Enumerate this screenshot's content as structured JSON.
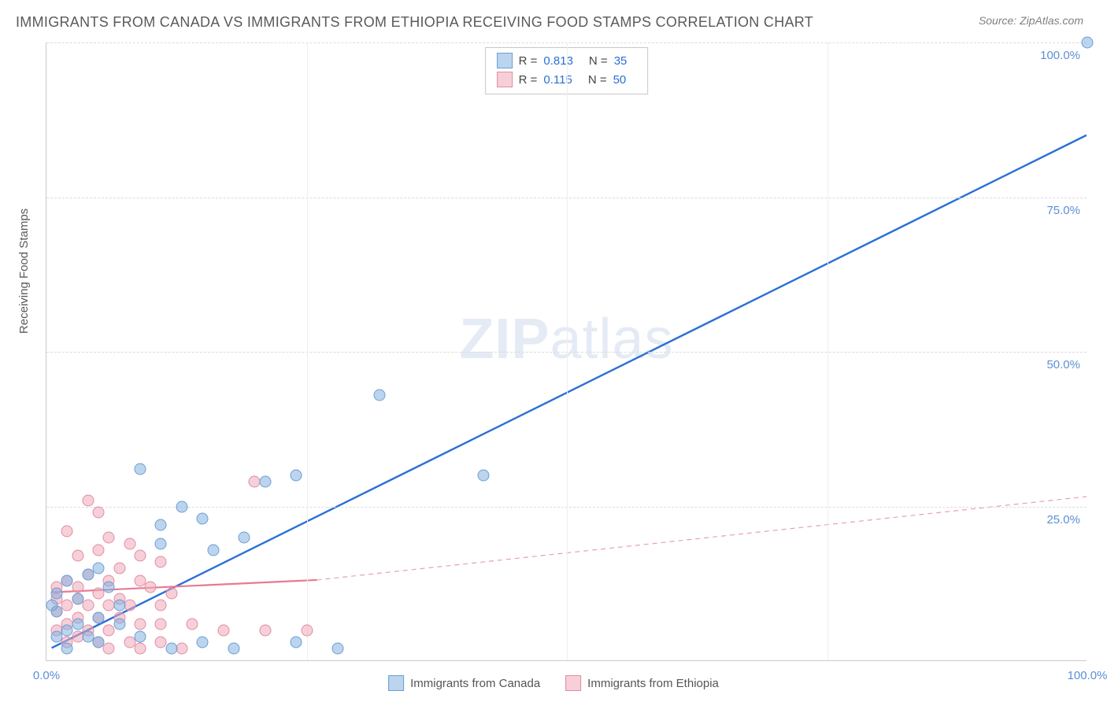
{
  "title": "IMMIGRANTS FROM CANADA VS IMMIGRANTS FROM ETHIOPIA RECEIVING FOOD STAMPS CORRELATION CHART",
  "source": "Source: ZipAtlas.com",
  "y_axis_title": "Receiving Food Stamps",
  "watermark_bold": "ZIP",
  "watermark_light": "atlas",
  "chart": {
    "type": "scatter",
    "xlim": [
      0,
      100
    ],
    "ylim": [
      0,
      100
    ],
    "tick_step": 25,
    "xtick_labels": [
      "0.0%",
      "100.0%"
    ],
    "ytick_labels": [
      "25.0%",
      "50.0%",
      "75.0%",
      "100.0%"
    ],
    "grid_color": "#dcdcdc",
    "background_color": "#ffffff",
    "axis_color": "#c9c9c9",
    "label_color": "#5b8fd6",
    "label_fontsize": 15
  },
  "series": {
    "a": {
      "label": "Immigrants from Canada",
      "color_fill": "rgba(133,177,224,0.55)",
      "color_stroke": "#6a9fd4",
      "R": "0.813",
      "N": "35",
      "trend": {
        "x1": 0.5,
        "y1": 2,
        "x2": 100,
        "y2": 85,
        "stroke": "#2a6fd6",
        "width": 2.4,
        "dash": ""
      },
      "points": [
        [
          100,
          100
        ],
        [
          42,
          30
        ],
        [
          32,
          43
        ],
        [
          24,
          30
        ],
        [
          21,
          29
        ],
        [
          9,
          31
        ],
        [
          13,
          25
        ],
        [
          15,
          23
        ],
        [
          19,
          20
        ],
        [
          16,
          18
        ],
        [
          11,
          22
        ],
        [
          11,
          19
        ],
        [
          5,
          15
        ],
        [
          6,
          12
        ],
        [
          4,
          14
        ],
        [
          3,
          10
        ],
        [
          2,
          13
        ],
        [
          5,
          7
        ],
        [
          3,
          6
        ],
        [
          1,
          11
        ],
        [
          1,
          8
        ],
        [
          2,
          5
        ],
        [
          4,
          4
        ],
        [
          7,
          6
        ],
        [
          9,
          4
        ],
        [
          12,
          2
        ],
        [
          15,
          3
        ],
        [
          18,
          2
        ],
        [
          24,
          3
        ],
        [
          28,
          2
        ],
        [
          5,
          3
        ],
        [
          2,
          2
        ],
        [
          1,
          4
        ],
        [
          0.5,
          9
        ],
        [
          7,
          9
        ]
      ]
    },
    "b": {
      "label": "Immigrants from Ethiopia",
      "color_fill": "rgba(240,168,184,0.55)",
      "color_stroke": "#e08da2",
      "R": "0.115",
      "N": "50",
      "trend_solid": {
        "x1": 0.5,
        "y1": 11,
        "x2": 26,
        "y2": 13,
        "stroke": "#e77a93",
        "width": 2.2
      },
      "trend_dash": {
        "x1": 26,
        "y1": 13,
        "x2": 100,
        "y2": 26.5,
        "stroke": "#e8a0af",
        "width": 1.2,
        "dash": "6,5"
      },
      "points": [
        [
          20,
          29
        ],
        [
          4,
          26
        ],
        [
          5,
          24
        ],
        [
          2,
          21
        ],
        [
          6,
          20
        ],
        [
          8,
          19
        ],
        [
          3,
          17
        ],
        [
          5,
          18
        ],
        [
          9,
          17
        ],
        [
          11,
          16
        ],
        [
          7,
          15
        ],
        [
          4,
          14
        ],
        [
          2,
          13
        ],
        [
          3,
          12
        ],
        [
          1,
          12
        ],
        [
          6,
          13
        ],
        [
          9,
          13
        ],
        [
          10,
          12
        ],
        [
          12,
          11
        ],
        [
          5,
          11
        ],
        [
          3,
          10
        ],
        [
          7,
          10
        ],
        [
          2,
          9
        ],
        [
          4,
          9
        ],
        [
          6,
          9
        ],
        [
          1,
          8
        ],
        [
          8,
          9
        ],
        [
          11,
          9
        ],
        [
          3,
          7
        ],
        [
          5,
          7
        ],
        [
          7,
          7
        ],
        [
          9,
          6
        ],
        [
          2,
          6
        ],
        [
          4,
          5
        ],
        [
          6,
          5
        ],
        [
          11,
          6
        ],
        [
          14,
          6
        ],
        [
          17,
          5
        ],
        [
          21,
          5
        ],
        [
          25,
          5
        ],
        [
          3,
          4
        ],
        [
          5,
          3
        ],
        [
          8,
          3
        ],
        [
          11,
          3
        ],
        [
          6,
          2
        ],
        [
          9,
          2
        ],
        [
          13,
          2
        ],
        [
          2,
          3
        ],
        [
          1,
          5
        ],
        [
          1,
          10
        ]
      ]
    }
  },
  "legend_top": {
    "r_label": "R =",
    "n_label": "N ="
  }
}
